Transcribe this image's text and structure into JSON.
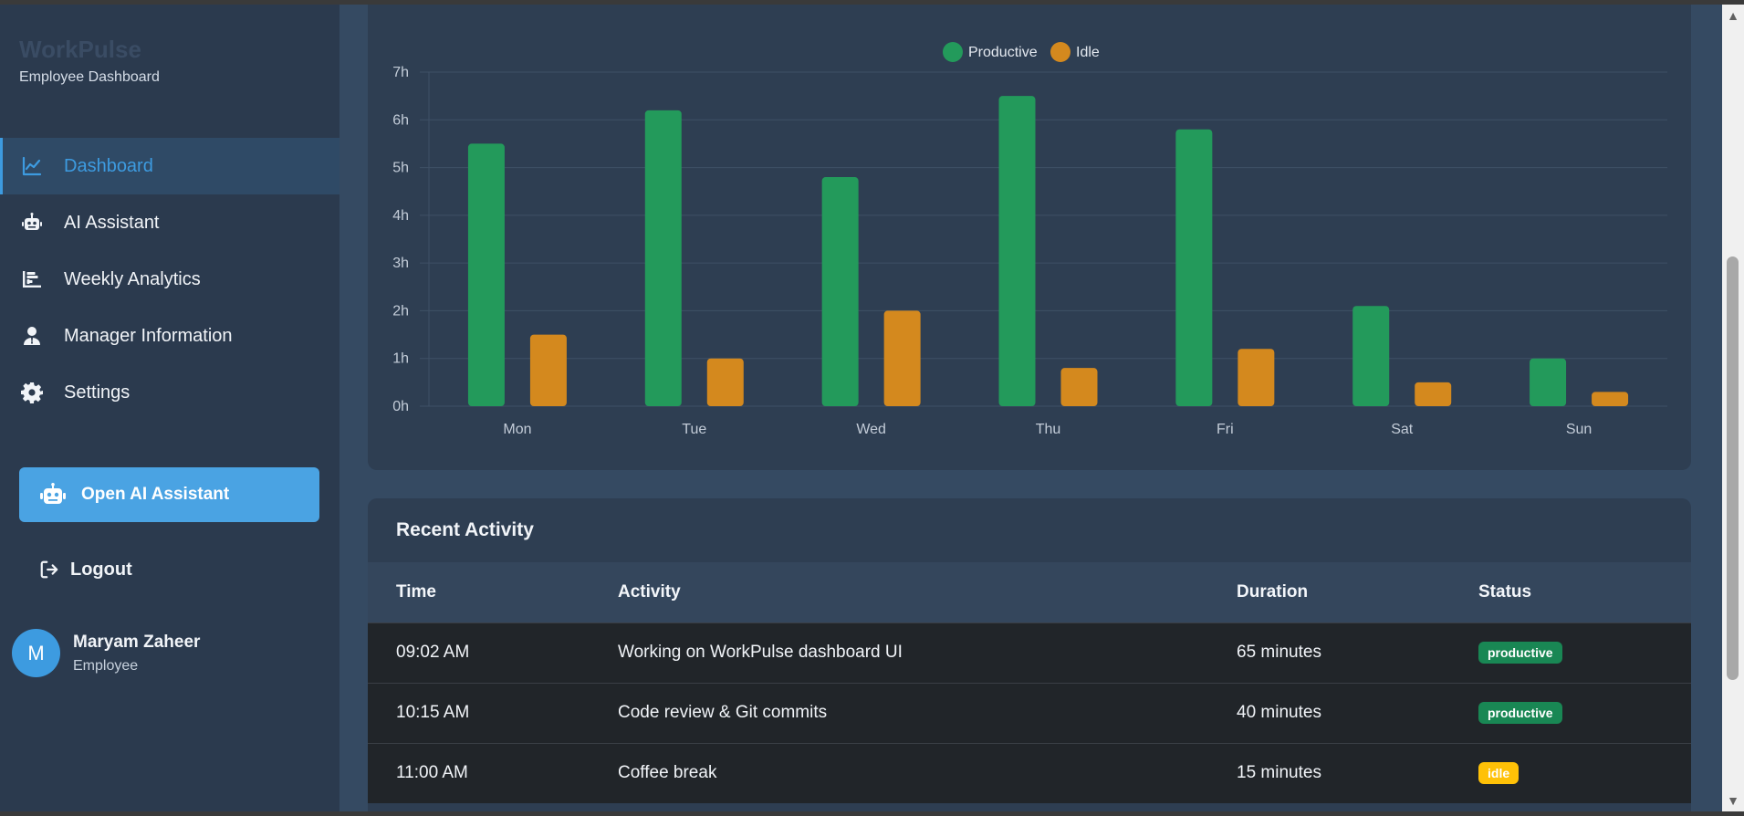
{
  "sidebar": {
    "brand_title": "WorkPulse",
    "brand_subtitle": "Employee Dashboard",
    "items": [
      {
        "label": "Dashboard",
        "icon": "chart-line-icon",
        "active": true
      },
      {
        "label": "AI Assistant",
        "icon": "robot-icon",
        "active": false
      },
      {
        "label": "Weekly Analytics",
        "icon": "bar-chart-icon",
        "active": false
      },
      {
        "label": "Manager Information",
        "icon": "user-tie-icon",
        "active": false
      },
      {
        "label": "Settings",
        "icon": "gear-icon",
        "active": false
      }
    ],
    "ai_button_label": "Open AI Assistant",
    "logout_label": "Logout",
    "user": {
      "initial": "M",
      "name": "Maryam Zaheer",
      "role": "Employee"
    }
  },
  "chart_data": {
    "type": "bar",
    "categories": [
      "Mon",
      "Tue",
      "Wed",
      "Thu",
      "Fri",
      "Sat",
      "Sun"
    ],
    "series": [
      {
        "name": "Productive",
        "values": [
          5.5,
          6.2,
          4.8,
          6.5,
          5.8,
          2.1,
          1.0
        ],
        "color": "#239a5b"
      },
      {
        "name": "Idle",
        "values": [
          1.5,
          1.0,
          2.0,
          0.8,
          1.2,
          0.5,
          0.3
        ],
        "color": "#d4891e"
      }
    ],
    "y_ticks": [
      "0h",
      "1h",
      "2h",
      "3h",
      "4h",
      "5h",
      "6h",
      "7h"
    ],
    "ylim": [
      0,
      7
    ],
    "grid": true,
    "legend_position": "top-center"
  },
  "activity": {
    "title": "Recent Activity",
    "columns": [
      "Time",
      "Activity",
      "Duration",
      "Status"
    ],
    "rows": [
      {
        "time": "09:02 AM",
        "activity": "Working on WorkPulse dashboard UI",
        "duration": "65 minutes",
        "status": "productive"
      },
      {
        "time": "10:15 AM",
        "activity": "Code review & Git commits",
        "duration": "40 minutes",
        "status": "productive"
      },
      {
        "time": "11:00 AM",
        "activity": "Coffee break",
        "duration": "15 minutes",
        "status": "idle"
      }
    ]
  },
  "colors": {
    "accent": "#3d9be0",
    "productive_badge": "#198754",
    "idle_badge": "#ffc107"
  }
}
